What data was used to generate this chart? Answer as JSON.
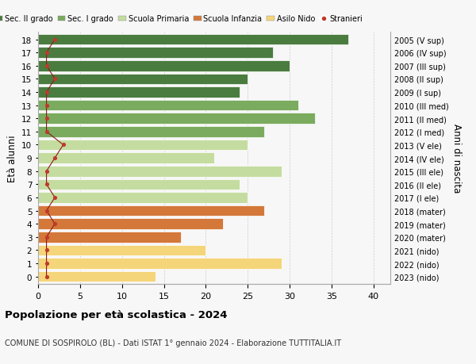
{
  "ages": [
    18,
    17,
    16,
    15,
    14,
    13,
    12,
    11,
    10,
    9,
    8,
    7,
    6,
    5,
    4,
    3,
    2,
    1,
    0
  ],
  "values": [
    37,
    28,
    30,
    25,
    24,
    31,
    33,
    27,
    25,
    21,
    29,
    24,
    25,
    27,
    22,
    17,
    20,
    29,
    14
  ],
  "stranieri": [
    2,
    1,
    1,
    2,
    1,
    1,
    1,
    1,
    3,
    2,
    1,
    1,
    2,
    1,
    2,
    1,
    1,
    1,
    1
  ],
  "right_labels": [
    "2005 (V sup)",
    "2006 (IV sup)",
    "2007 (III sup)",
    "2008 (II sup)",
    "2009 (I sup)",
    "2010 (III med)",
    "2011 (II med)",
    "2012 (I med)",
    "2013 (V ele)",
    "2014 (IV ele)",
    "2015 (III ele)",
    "2016 (II ele)",
    "2017 (I ele)",
    "2018 (mater)",
    "2019 (mater)",
    "2020 (mater)",
    "2021 (nido)",
    "2022 (nido)",
    "2023 (nido)"
  ],
  "bar_colors": [
    "#4a7c3f",
    "#4a7c3f",
    "#4a7c3f",
    "#4a7c3f",
    "#4a7c3f",
    "#7aab5e",
    "#7aab5e",
    "#7aab5e",
    "#c5dca0",
    "#c5dca0",
    "#c5dca0",
    "#c5dca0",
    "#c5dca0",
    "#d4783a",
    "#d4783a",
    "#d4783a",
    "#f5d57a",
    "#f5d57a",
    "#f5d57a"
  ],
  "stranieri_color": "#c0392b",
  "stranieri_line_color": "#8b1a1a",
  "title": "Popolazione per età scolastica - 2024",
  "subtitle": "COMUNE DI SOSPIROLO (BL) - Dati ISTAT 1° gennaio 2024 - Elaborazione TUTTITALIA.IT",
  "ylabel": "Età alunni",
  "ylabel2": "Anni di nascita",
  "xlim": [
    0,
    42
  ],
  "ylim_bottom": -0.55,
  "ylim_top": 18.55,
  "legend_labels": [
    "Sec. II grado",
    "Sec. I grado",
    "Scuola Primaria",
    "Scuola Infanzia",
    "Asilo Nido",
    "Stranieri"
  ],
  "legend_colors": [
    "#4a7c3f",
    "#7aab5e",
    "#c5dca0",
    "#d4783a",
    "#f5d57a",
    "#c0392b"
  ],
  "background_color": "#f7f7f7",
  "grid_color": "#cccccc"
}
